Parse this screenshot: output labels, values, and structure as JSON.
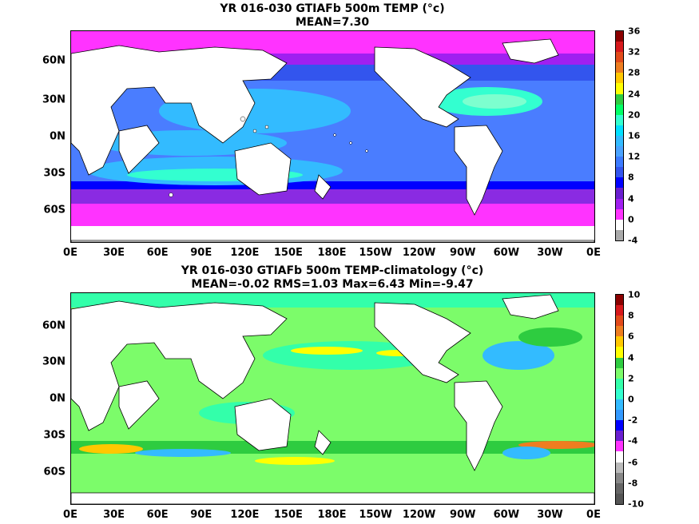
{
  "top": {
    "title_line1": "YR 016-030 GTIAFb 500m TEMP (°c)",
    "title_line2": "MEAN=7.30",
    "colorbar_labels": [
      "36",
      "32",
      "28",
      "24",
      "20",
      "16",
      "12",
      "8",
      "4",
      "0",
      "-4"
    ],
    "colorbar_colors": [
      "#8b0000",
      "#d7191c",
      "#e24a1a",
      "#ee7d20",
      "#ffc800",
      "#ffff00",
      "#2ecc40",
      "#00ff66",
      "#33ffd0",
      "#00e0ff",
      "#33bbff",
      "#4aa3ff",
      "#3c7bff",
      "#3355ee",
      "#0000ff",
      "#6a1fd0",
      "#a020f0",
      "#ff33ff",
      "#ffffff",
      "#aaaaaa"
    ]
  },
  "bottom": {
    "title_line1": "YR 016-030 GTIAFb 500m TEMP-climatology (°c)",
    "title_line2": "MEAN=-0.02   RMS=1.03   Max=6.43   Min=-9.47",
    "colorbar_labels": [
      "10",
      "8",
      "6",
      "4",
      "2",
      "0",
      "-2",
      "-4",
      "-6",
      "-8",
      "-10"
    ],
    "colorbar_colors": [
      "#8b0000",
      "#d7191c",
      "#e24a1a",
      "#ee7d20",
      "#ffc800",
      "#ffff00",
      "#2ecc40",
      "#7cfc6a",
      "#33ffaa",
      "#33ffd0",
      "#33bbff",
      "#3399ff",
      "#0000ff",
      "#6a1fd0",
      "#ff33ff",
      "#ffffff",
      "#bbbbbb",
      "#888888",
      "#666666",
      "#555555"
    ]
  },
  "axes": {
    "x_ticks": [
      "0E",
      "30E",
      "60E",
      "90E",
      "120E",
      "150E",
      "180E",
      "150W",
      "120W",
      "90W",
      "60W",
      "30W",
      "0E"
    ],
    "y_ticks": [
      "60N",
      "30N",
      "0N",
      "30S",
      "60S"
    ]
  }
}
